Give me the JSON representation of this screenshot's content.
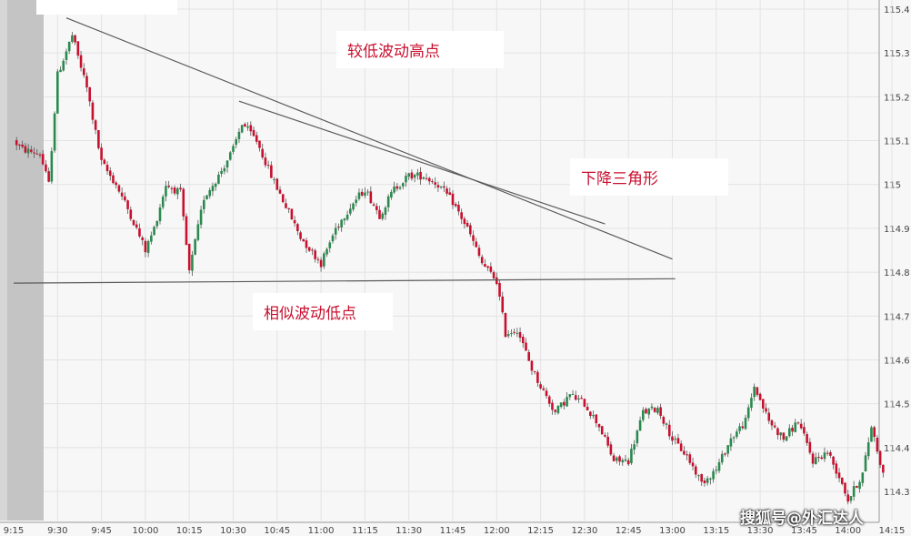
{
  "chart_data": {
    "type": "candlestick",
    "x_ticks": [
      "9:15",
      "9:30",
      "9:45",
      "10:00",
      "10:15",
      "10:30",
      "10:45",
      "11:00",
      "11:15",
      "11:30",
      "11:45",
      "12:00",
      "12:15",
      "12:30",
      "12:45",
      "13:00",
      "13:15",
      "13:30",
      "13:45",
      "14:00",
      "14:15"
    ],
    "y_ticks": [
      "115.4",
      "115.3",
      "115.2",
      "115.1",
      "115",
      "114.9",
      "114.8",
      "114.7",
      "114.6",
      "114.5",
      "114.4",
      "114.3"
    ],
    "ylim": [
      114.27,
      115.41
    ],
    "grid": true,
    "close_path": [
      [
        "9:15",
        115.1
      ],
      [
        "9:18",
        115.08
      ],
      [
        "9:24",
        115.07
      ],
      [
        "9:27",
        115.0
      ],
      [
        "9:30",
        115.25
      ],
      [
        "9:35",
        115.34
      ],
      [
        "9:40",
        115.22
      ],
      [
        "9:45",
        115.05
      ],
      [
        "9:50",
        115.0
      ],
      [
        "9:55",
        114.93
      ],
      [
        "10:00",
        114.85
      ],
      [
        "10:03",
        114.9
      ],
      [
        "10:07",
        115.0
      ],
      [
        "10:12",
        114.98
      ],
      [
        "10:15",
        114.8
      ],
      [
        "10:20",
        114.97
      ],
      [
        "10:25",
        115.02
      ],
      [
        "10:30",
        115.08
      ],
      [
        "10:33",
        115.14
      ],
      [
        "10:38",
        115.1
      ],
      [
        "10:43",
        115.02
      ],
      [
        "10:48",
        114.95
      ],
      [
        "10:53",
        114.88
      ],
      [
        "11:00",
        114.82
      ],
      [
        "11:05",
        114.9
      ],
      [
        "11:10",
        114.95
      ],
      [
        "11:15",
        114.99
      ],
      [
        "11:20",
        114.93
      ],
      [
        "11:25",
        114.99
      ],
      [
        "11:30",
        115.02
      ],
      [
        "11:35",
        115.02
      ],
      [
        "11:40",
        115.0
      ],
      [
        "11:45",
        114.96
      ],
      [
        "11:50",
        114.9
      ],
      [
        "11:55",
        114.82
      ],
      [
        "12:00",
        114.78
      ],
      [
        "12:03",
        114.66
      ],
      [
        "12:07",
        114.67
      ],
      [
        "12:12",
        114.58
      ],
      [
        "12:15",
        114.54
      ],
      [
        "12:20",
        114.48
      ],
      [
        "12:25",
        114.52
      ],
      [
        "12:30",
        114.5
      ],
      [
        "12:35",
        114.45
      ],
      [
        "12:40",
        114.37
      ],
      [
        "12:45",
        114.37
      ],
      [
        "12:50",
        114.48
      ],
      [
        "12:55",
        114.49
      ],
      [
        "13:00",
        114.42
      ],
      [
        "13:05",
        114.38
      ],
      [
        "13:10",
        114.32
      ],
      [
        "13:15",
        114.35
      ],
      [
        "13:20",
        114.42
      ],
      [
        "13:25",
        114.46
      ],
      [
        "13:28",
        114.54
      ],
      [
        "13:33",
        114.46
      ],
      [
        "13:38",
        114.42
      ],
      [
        "13:43",
        114.46
      ],
      [
        "13:48",
        114.37
      ],
      [
        "13:53",
        114.39
      ],
      [
        "13:58",
        114.32
      ],
      [
        "14:00",
        114.28
      ],
      [
        "14:05",
        114.34
      ],
      [
        "14:08",
        114.45
      ],
      [
        "14:12",
        114.34
      ]
    ],
    "annotations": [
      {
        "text": "较低波动高点"
      },
      {
        "text": "下降三角形"
      },
      {
        "text": "相似波动低点"
      }
    ],
    "trendlines": [
      {
        "name": "upper-outer",
        "from": [
          "9:33",
          115.38
        ],
        "to": [
          "13:00",
          114.83
        ]
      },
      {
        "name": "upper-inner",
        "from": [
          "10:32",
          115.19
        ],
        "to": [
          "12:37",
          114.91
        ]
      },
      {
        "name": "support",
        "from": [
          "9:15",
          114.775
        ],
        "to": [
          "13:01",
          114.785
        ]
      }
    ],
    "colors": {
      "up": "#2a8a4e",
      "down": "#c8102e",
      "wick": "#333333",
      "trendline": "#5a5a5a",
      "gridline": "#e3e3e3",
      "premarket": "#c4c4c4"
    }
  },
  "watermark": "搜狐号@外汇达人"
}
